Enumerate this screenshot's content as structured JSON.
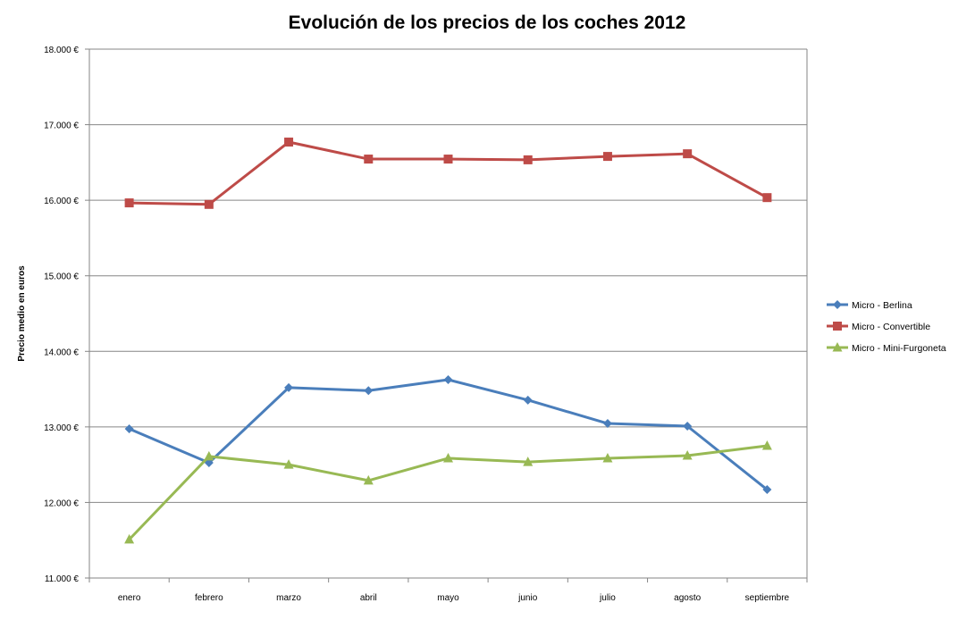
{
  "chart_data": {
    "type": "line",
    "title": "Evolución de los precios de los coches 2012",
    "xlabel": "",
    "ylabel": "Precio medio en euros",
    "ylim": [
      11000,
      18000
    ],
    "ytick_step": 1000,
    "ytick_labels": [
      "11.000 €",
      "12.000 €",
      "13.000 €",
      "14.000 €",
      "15.000 €",
      "16.000 €",
      "17.000 €",
      "18.000 €"
    ],
    "grid": true,
    "legend_position": "right",
    "categories": [
      "enero",
      "febrero",
      "marzo",
      "abril",
      "mayo",
      "junio",
      "julio",
      "agosto",
      "septiembre"
    ],
    "series": [
      {
        "name": "Micro - Berlina",
        "color": "#4a7ebb",
        "marker": "diamond",
        "values": [
          12975,
          12525,
          13520,
          13480,
          13625,
          13355,
          13045,
          13010,
          12170
        ]
      },
      {
        "name": "Micro - Convertible",
        "color": "#be4b48",
        "marker": "square",
        "values": [
          15965,
          15945,
          16770,
          16545,
          16545,
          16535,
          16580,
          16615,
          16035
        ]
      },
      {
        "name": "Micro - Mini-Furgoneta",
        "color": "#98b954",
        "marker": "triangle",
        "values": [
          11510,
          12610,
          12500,
          12290,
          12585,
          12535,
          12585,
          12620,
          12750
        ]
      }
    ]
  }
}
